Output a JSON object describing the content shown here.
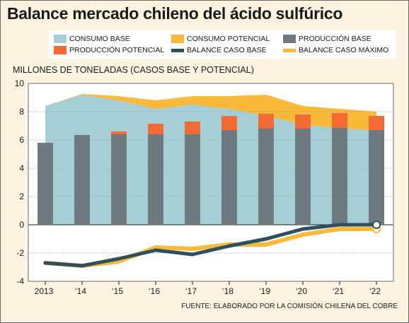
{
  "title": "Balance mercado chileno del ácido sulfúrico",
  "chart_data": {
    "type": "area",
    "title": "Balance mercado chileno del ácido sulfúrico",
    "ylabel": "MILLONES DE TONELADAS (CASOS BASE Y POTENCIAL)",
    "xlabel": "",
    "categories": [
      "2013",
      "‘14",
      "‘15",
      "‘16",
      "‘17",
      "‘18",
      "‘19",
      "‘20",
      "‘21",
      "‘22"
    ],
    "ylim": [
      -4,
      10
    ],
    "yticks": [
      "10",
      "8",
      "6",
      "4",
      "2",
      "0",
      "-2",
      "-4"
    ],
    "grid": "horizontal dotted",
    "series": [
      {
        "name": "CONSUMO BASE",
        "type": "area",
        "color": "#a6cfd5",
        "values": [
          8.4,
          9.2,
          8.8,
          8.2,
          8.5,
          8.2,
          7.7,
          7.1,
          6.8,
          6.7
        ]
      },
      {
        "name": "CONSUMO POTENCIAL",
        "type": "area",
        "color": "#fbb93a",
        "values": [
          8.4,
          9.25,
          9.1,
          8.8,
          9.1,
          9.1,
          9.2,
          8.4,
          8.2,
          8.0
        ]
      },
      {
        "name": "PRODUCCIÓN BASE",
        "type": "bar",
        "color": "#6e7a80",
        "values": [
          5.8,
          6.35,
          6.4,
          6.4,
          6.4,
          6.7,
          6.8,
          6.8,
          6.85,
          6.7
        ]
      },
      {
        "name": "PRODUCCIÓN POTENCIAL",
        "type": "bar",
        "color": "#f26c33",
        "values": [
          5.8,
          6.35,
          6.6,
          7.15,
          7.3,
          7.7,
          7.85,
          7.8,
          7.9,
          7.7
        ]
      },
      {
        "name": "BALANCE CASO BASE",
        "type": "line",
        "color": "#2e4f5e",
        "values": [
          -2.7,
          -2.9,
          -2.4,
          -1.8,
          -2.1,
          -1.5,
          -1.0,
          -0.3,
          0.0,
          0.0
        ]
      },
      {
        "name": "BALANCE CASO MÁXIMO",
        "type": "line",
        "color": "#fbb93a",
        "values": [
          -2.7,
          -2.9,
          -2.6,
          -1.6,
          -1.7,
          -1.4,
          -1.4,
          -0.7,
          -0.3,
          -0.3
        ]
      }
    ]
  },
  "legend": {
    "items": [
      {
        "label": "CONSUMO BASE",
        "color": "#a6cfd5",
        "kind": "box"
      },
      {
        "label": "CONSUMO POTENCIAL",
        "color": "#fbb93a",
        "kind": "box"
      },
      {
        "label": "PRODUCCIÓN BASE",
        "color": "#6e7a80",
        "kind": "box"
      },
      {
        "label": "PRODUCCIÓN POTENCIAL",
        "color": "#f26c33",
        "kind": "box"
      },
      {
        "label": "BALANCE CASO BASE",
        "color": "#2e4f5e",
        "kind": "line"
      },
      {
        "label": "BALANCE CASO MÁXIMO",
        "color": "#fbb93a",
        "kind": "line"
      }
    ]
  },
  "source": "FUENTE: ELABORADO POR LA COMISIÓN CHILENA DEL COBRE"
}
